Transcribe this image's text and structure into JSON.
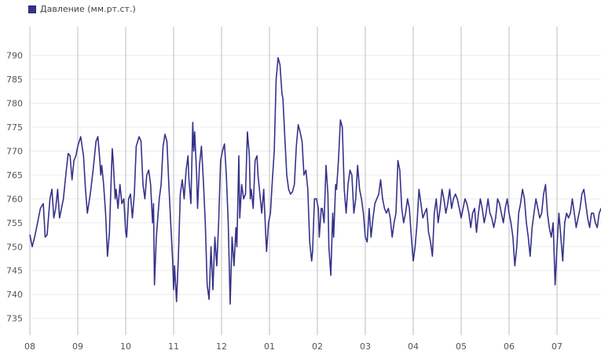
{
  "chart_data": {
    "type": "line",
    "title": "",
    "xlabel": "",
    "ylabel": "",
    "legend_position": "top-left",
    "grid": true,
    "xlim": [
      0,
      12.2
    ],
    "ylim": [
      731.5,
      796
    ],
    "x_ticks": [
      {
        "label": "08",
        "x": 0
      },
      {
        "label": "09",
        "x": 1
      },
      {
        "label": "10",
        "x": 2
      },
      {
        "label": "11",
        "x": 3
      },
      {
        "label": "12",
        "x": 4
      },
      {
        "label": "01",
        "x": 5
      },
      {
        "label": "02",
        "x": 6
      },
      {
        "label": "03",
        "x": 7
      },
      {
        "label": "04",
        "x": 8
      },
      {
        "label": "05",
        "x": 9
      },
      {
        "label": "06",
        "x": 10
      },
      {
        "label": "07",
        "x": 11
      }
    ],
    "y_ticks": [
      735,
      740,
      745,
      750,
      755,
      760,
      765,
      770,
      775,
      780,
      785,
      790
    ],
    "series": [
      {
        "name": "Давление (мм.рт.ст.)",
        "color": "#35328a",
        "points": [
          [
            0.0,
            752.5
          ],
          [
            0.05,
            750
          ],
          [
            0.1,
            752
          ],
          [
            0.16,
            755
          ],
          [
            0.22,
            758
          ],
          [
            0.28,
            759
          ],
          [
            0.32,
            752
          ],
          [
            0.36,
            752.5
          ],
          [
            0.42,
            760
          ],
          [
            0.46,
            762
          ],
          [
            0.5,
            756
          ],
          [
            0.54,
            758
          ],
          [
            0.58,
            762
          ],
          [
            0.62,
            756
          ],
          [
            0.7,
            760
          ],
          [
            0.76,
            766
          ],
          [
            0.8,
            769.5
          ],
          [
            0.84,
            769
          ],
          [
            0.88,
            764
          ],
          [
            0.92,
            768
          ],
          [
            0.96,
            769
          ],
          [
            1.0,
            771
          ],
          [
            1.06,
            773
          ],
          [
            1.12,
            769
          ],
          [
            1.16,
            762
          ],
          [
            1.2,
            757
          ],
          [
            1.26,
            761
          ],
          [
            1.32,
            766
          ],
          [
            1.38,
            772
          ],
          [
            1.42,
            773
          ],
          [
            1.46,
            768
          ],
          [
            1.48,
            765
          ],
          [
            1.5,
            767
          ],
          [
            1.54,
            763
          ],
          [
            1.58,
            757
          ],
          [
            1.62,
            748
          ],
          [
            1.66,
            753
          ],
          [
            1.7,
            765
          ],
          [
            1.72,
            770.5
          ],
          [
            1.74,
            768
          ],
          [
            1.78,
            760
          ],
          [
            1.8,
            762
          ],
          [
            1.84,
            758
          ],
          [
            1.88,
            763
          ],
          [
            1.92,
            759
          ],
          [
            1.96,
            760
          ],
          [
            2.0,
            753
          ],
          [
            2.02,
            752
          ],
          [
            2.06,
            760
          ],
          [
            2.1,
            761
          ],
          [
            2.14,
            756
          ],
          [
            2.18,
            761
          ],
          [
            2.22,
            771
          ],
          [
            2.28,
            773
          ],
          [
            2.32,
            772
          ],
          [
            2.36,
            763
          ],
          [
            2.4,
            760
          ],
          [
            2.44,
            765
          ],
          [
            2.48,
            766
          ],
          [
            2.52,
            763
          ],
          [
            2.56,
            755
          ],
          [
            2.58,
            759
          ],
          [
            2.6,
            742
          ],
          [
            2.64,
            752
          ],
          [
            2.7,
            760
          ],
          [
            2.74,
            763
          ],
          [
            2.78,
            771
          ],
          [
            2.82,
            773.5
          ],
          [
            2.86,
            772
          ],
          [
            2.9,
            763
          ],
          [
            2.94,
            755
          ],
          [
            2.98,
            747
          ],
          [
            3.0,
            741
          ],
          [
            3.02,
            746
          ],
          [
            3.06,
            738.5
          ],
          [
            3.1,
            748
          ],
          [
            3.14,
            761
          ],
          [
            3.18,
            764
          ],
          [
            3.22,
            760
          ],
          [
            3.26,
            766
          ],
          [
            3.3,
            769
          ],
          [
            3.32,
            764
          ],
          [
            3.36,
            759
          ],
          [
            3.4,
            776
          ],
          [
            3.42,
            770
          ],
          [
            3.44,
            774
          ],
          [
            3.48,
            765
          ],
          [
            3.5,
            758
          ],
          [
            3.54,
            767
          ],
          [
            3.58,
            771
          ],
          [
            3.62,
            764
          ],
          [
            3.66,
            755
          ],
          [
            3.7,
            742
          ],
          [
            3.74,
            739
          ],
          [
            3.78,
            750
          ],
          [
            3.82,
            741
          ],
          [
            3.86,
            752
          ],
          [
            3.9,
            746
          ],
          [
            3.94,
            755
          ],
          [
            3.98,
            768
          ],
          [
            4.02,
            770
          ],
          [
            4.06,
            771.5
          ],
          [
            4.1,
            765
          ],
          [
            4.14,
            755
          ],
          [
            4.18,
            738
          ],
          [
            4.22,
            752
          ],
          [
            4.26,
            746
          ],
          [
            4.3,
            754
          ],
          [
            4.32,
            750
          ],
          [
            4.36,
            769
          ],
          [
            4.38,
            756
          ],
          [
            4.42,
            763
          ],
          [
            4.46,
            760
          ],
          [
            4.5,
            761
          ],
          [
            4.54,
            774
          ],
          [
            4.58,
            769
          ],
          [
            4.6,
            760
          ],
          [
            4.62,
            762
          ],
          [
            4.66,
            758
          ],
          [
            4.7,
            768
          ],
          [
            4.74,
            769
          ],
          [
            4.76,
            765
          ],
          [
            4.8,
            761
          ],
          [
            4.84,
            757
          ],
          [
            4.88,
            762
          ],
          [
            4.92,
            753
          ],
          [
            4.94,
            749
          ],
          [
            4.98,
            755
          ],
          [
            5.02,
            757
          ],
          [
            5.06,
            764
          ],
          [
            5.1,
            770
          ],
          [
            5.14,
            785
          ],
          [
            5.18,
            789.5
          ],
          [
            5.22,
            788
          ],
          [
            5.26,
            782
          ],
          [
            5.28,
            781
          ],
          [
            5.32,
            773
          ],
          [
            5.36,
            765
          ],
          [
            5.4,
            762
          ],
          [
            5.44,
            761
          ],
          [
            5.48,
            761.5
          ],
          [
            5.52,
            763
          ],
          [
            5.56,
            771
          ],
          [
            5.6,
            775.5
          ],
          [
            5.64,
            774
          ],
          [
            5.68,
            772
          ],
          [
            5.72,
            765
          ],
          [
            5.76,
            766
          ],
          [
            5.8,
            762
          ],
          [
            5.84,
            751
          ],
          [
            5.88,
            747
          ],
          [
            5.9,
            749
          ],
          [
            5.94,
            760
          ],
          [
            5.98,
            760
          ],
          [
            6.02,
            758
          ],
          [
            6.04,
            752
          ],
          [
            6.08,
            758
          ],
          [
            6.1,
            758
          ],
          [
            6.14,
            755
          ],
          [
            6.18,
            767
          ],
          [
            6.22,
            761
          ],
          [
            6.24,
            750
          ],
          [
            6.28,
            744
          ],
          [
            6.32,
            757
          ],
          [
            6.34,
            752
          ],
          [
            6.38,
            763
          ],
          [
            6.4,
            762
          ],
          [
            6.44,
            768
          ],
          [
            6.48,
            776.5
          ],
          [
            6.52,
            775
          ],
          [
            6.56,
            762
          ],
          [
            6.6,
            757
          ],
          [
            6.64,
            763
          ],
          [
            6.68,
            766
          ],
          [
            6.72,
            765
          ],
          [
            6.76,
            757
          ],
          [
            6.8,
            760
          ],
          [
            6.84,
            767
          ],
          [
            6.88,
            762
          ],
          [
            6.92,
            760
          ],
          [
            6.96,
            757
          ],
          [
            7.0,
            752
          ],
          [
            7.04,
            751
          ],
          [
            7.08,
            758
          ],
          [
            7.12,
            752
          ],
          [
            7.16,
            756
          ],
          [
            7.2,
            759
          ],
          [
            7.24,
            760
          ],
          [
            7.28,
            761
          ],
          [
            7.32,
            764
          ],
          [
            7.36,
            760
          ],
          [
            7.4,
            758
          ],
          [
            7.44,
            757
          ],
          [
            7.48,
            758
          ],
          [
            7.52,
            756
          ],
          [
            7.56,
            752
          ],
          [
            7.6,
            755
          ],
          [
            7.64,
            757
          ],
          [
            7.68,
            768
          ],
          [
            7.72,
            766
          ],
          [
            7.76,
            758
          ],
          [
            7.8,
            755
          ],
          [
            7.84,
            757
          ],
          [
            7.88,
            760
          ],
          [
            7.92,
            758
          ],
          [
            7.96,
            752
          ],
          [
            8.0,
            747
          ],
          [
            8.04,
            750
          ],
          [
            8.08,
            755
          ],
          [
            8.12,
            762
          ],
          [
            8.16,
            759
          ],
          [
            8.2,
            756
          ],
          [
            8.24,
            757
          ],
          [
            8.28,
            758
          ],
          [
            8.32,
            753
          ],
          [
            8.36,
            751
          ],
          [
            8.4,
            748
          ],
          [
            8.44,
            757
          ],
          [
            8.48,
            760
          ],
          [
            8.52,
            755
          ],
          [
            8.56,
            758
          ],
          [
            8.6,
            762
          ],
          [
            8.64,
            760
          ],
          [
            8.68,
            757
          ],
          [
            8.72,
            759
          ],
          [
            8.76,
            762
          ],
          [
            8.8,
            758
          ],
          [
            8.84,
            760
          ],
          [
            8.88,
            761
          ],
          [
            8.92,
            760
          ],
          [
            8.96,
            758
          ],
          [
            9.0,
            756
          ],
          [
            9.04,
            758
          ],
          [
            9.08,
            760
          ],
          [
            9.12,
            759
          ],
          [
            9.16,
            757
          ],
          [
            9.2,
            754
          ],
          [
            9.24,
            757
          ],
          [
            9.28,
            758
          ],
          [
            9.32,
            753
          ],
          [
            9.36,
            757
          ],
          [
            9.4,
            760
          ],
          [
            9.44,
            758
          ],
          [
            9.48,
            755
          ],
          [
            9.52,
            757
          ],
          [
            9.56,
            760
          ],
          [
            9.6,
            757
          ],
          [
            9.64,
            756
          ],
          [
            9.68,
            754
          ],
          [
            9.72,
            756
          ],
          [
            9.76,
            760
          ],
          [
            9.8,
            759
          ],
          [
            9.84,
            757
          ],
          [
            9.88,
            755
          ],
          [
            9.92,
            758
          ],
          [
            9.96,
            760
          ],
          [
            10.0,
            757
          ],
          [
            10.04,
            755
          ],
          [
            10.08,
            752
          ],
          [
            10.12,
            746
          ],
          [
            10.16,
            750
          ],
          [
            10.2,
            757
          ],
          [
            10.24,
            759
          ],
          [
            10.28,
            762
          ],
          [
            10.32,
            760
          ],
          [
            10.36,
            755
          ],
          [
            10.4,
            752
          ],
          [
            10.44,
            748
          ],
          [
            10.48,
            754
          ],
          [
            10.52,
            757
          ],
          [
            10.56,
            760
          ],
          [
            10.6,
            758
          ],
          [
            10.64,
            756
          ],
          [
            10.68,
            757
          ],
          [
            10.72,
            761
          ],
          [
            10.76,
            763
          ],
          [
            10.8,
            757
          ],
          [
            10.84,
            754
          ],
          [
            10.88,
            752
          ],
          [
            10.92,
            755
          ],
          [
            10.96,
            742
          ],
          [
            11.0,
            750
          ],
          [
            11.04,
            757
          ],
          [
            11.08,
            752
          ],
          [
            11.12,
            747
          ],
          [
            11.16,
            755
          ],
          [
            11.2,
            757
          ],
          [
            11.24,
            756
          ],
          [
            11.28,
            757
          ],
          [
            11.32,
            760
          ],
          [
            11.36,
            757
          ],
          [
            11.4,
            754
          ],
          [
            11.44,
            756
          ],
          [
            11.48,
            758
          ],
          [
            11.52,
            761
          ],
          [
            11.56,
            762
          ],
          [
            11.6,
            759
          ],
          [
            11.64,
            756
          ],
          [
            11.68,
            754
          ],
          [
            11.72,
            757
          ],
          [
            11.76,
            757
          ],
          [
            11.8,
            755
          ],
          [
            11.84,
            754
          ],
          [
            11.88,
            757
          ],
          [
            11.92,
            758
          ],
          [
            11.96,
            757
          ],
          [
            12.0,
            757.5
          ],
          [
            12.04,
            758
          ],
          [
            12.08,
            757.5
          ],
          [
            12.12,
            758
          ],
          [
            12.16,
            758
          ],
          [
            12.2,
            757.5
          ]
        ]
      }
    ]
  }
}
